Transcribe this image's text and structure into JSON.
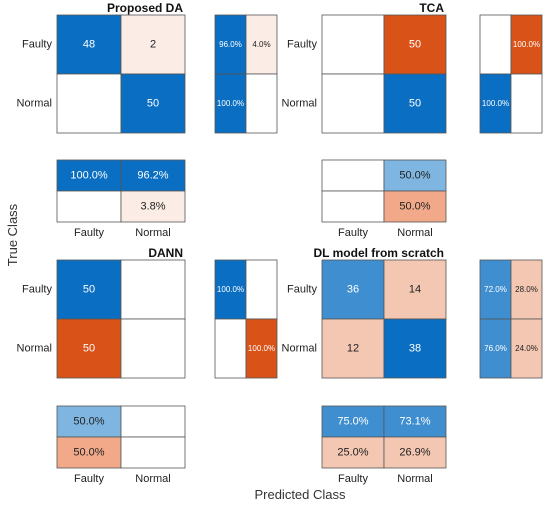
{
  "figure": {
    "ylabel": "True Class",
    "xlabel": "Predicted Class"
  },
  "colors": {
    "blue_dark": "#0a6fc2",
    "blue_mid": "#3f8fd0",
    "blue_light": "#7fb6e1",
    "orange_dark": "#d95319",
    "orange_light": "#f1a98a",
    "orange_pale": "#f4c7b3",
    "pink_faint": "#fbece6",
    "border": "#555555"
  },
  "chart_data": [
    {
      "type": "heatmap",
      "title": "Proposed DA",
      "row_labels": [
        "Faulty",
        "Normal"
      ],
      "col_labels": [
        "Faulty",
        "Normal"
      ],
      "matrix": [
        [
          "48",
          "2"
        ],
        [
          "",
          "50"
        ]
      ],
      "row_summary": [
        [
          "96.0%",
          "4.0%"
        ],
        [
          "100.0%",
          ""
        ]
      ],
      "col_summary": [
        [
          "100.0%",
          "96.2%"
        ],
        [
          "",
          "3.8%"
        ]
      ]
    },
    {
      "type": "heatmap",
      "title": "TCA",
      "row_labels": [
        "Faulty",
        "Normal"
      ],
      "col_labels": [
        "Faulty",
        "Normal"
      ],
      "matrix": [
        [
          "",
          "50"
        ],
        [
          "",
          "50"
        ]
      ],
      "row_summary": [
        [
          "",
          "100.0%"
        ],
        [
          "100.0%",
          ""
        ]
      ],
      "col_summary": [
        [
          "",
          "50.0%"
        ],
        [
          "",
          "50.0%"
        ]
      ]
    },
    {
      "type": "heatmap",
      "title": "DANN",
      "row_labels": [
        "Faulty",
        "Normal"
      ],
      "col_labels": [
        "Faulty",
        "Normal"
      ],
      "matrix": [
        [
          "50",
          ""
        ],
        [
          "50",
          ""
        ]
      ],
      "row_summary": [
        [
          "100.0%",
          ""
        ],
        [
          "",
          "100.0%"
        ]
      ],
      "col_summary": [
        [
          "50.0%",
          ""
        ],
        [
          "50.0%",
          ""
        ]
      ]
    },
    {
      "type": "heatmap",
      "title": "DL model from scratch",
      "row_labels": [
        "Faulty",
        "Normal"
      ],
      "col_labels": [
        "Faulty",
        "Normal"
      ],
      "matrix": [
        [
          "36",
          "14"
        ],
        [
          "12",
          "38"
        ]
      ],
      "row_summary": [
        [
          "72.0%",
          "28.0%"
        ],
        [
          "76.0%",
          "24.0%"
        ]
      ],
      "col_summary": [
        [
          "75.0%",
          "73.1%"
        ],
        [
          "25.0%",
          "26.9%"
        ]
      ]
    }
  ]
}
